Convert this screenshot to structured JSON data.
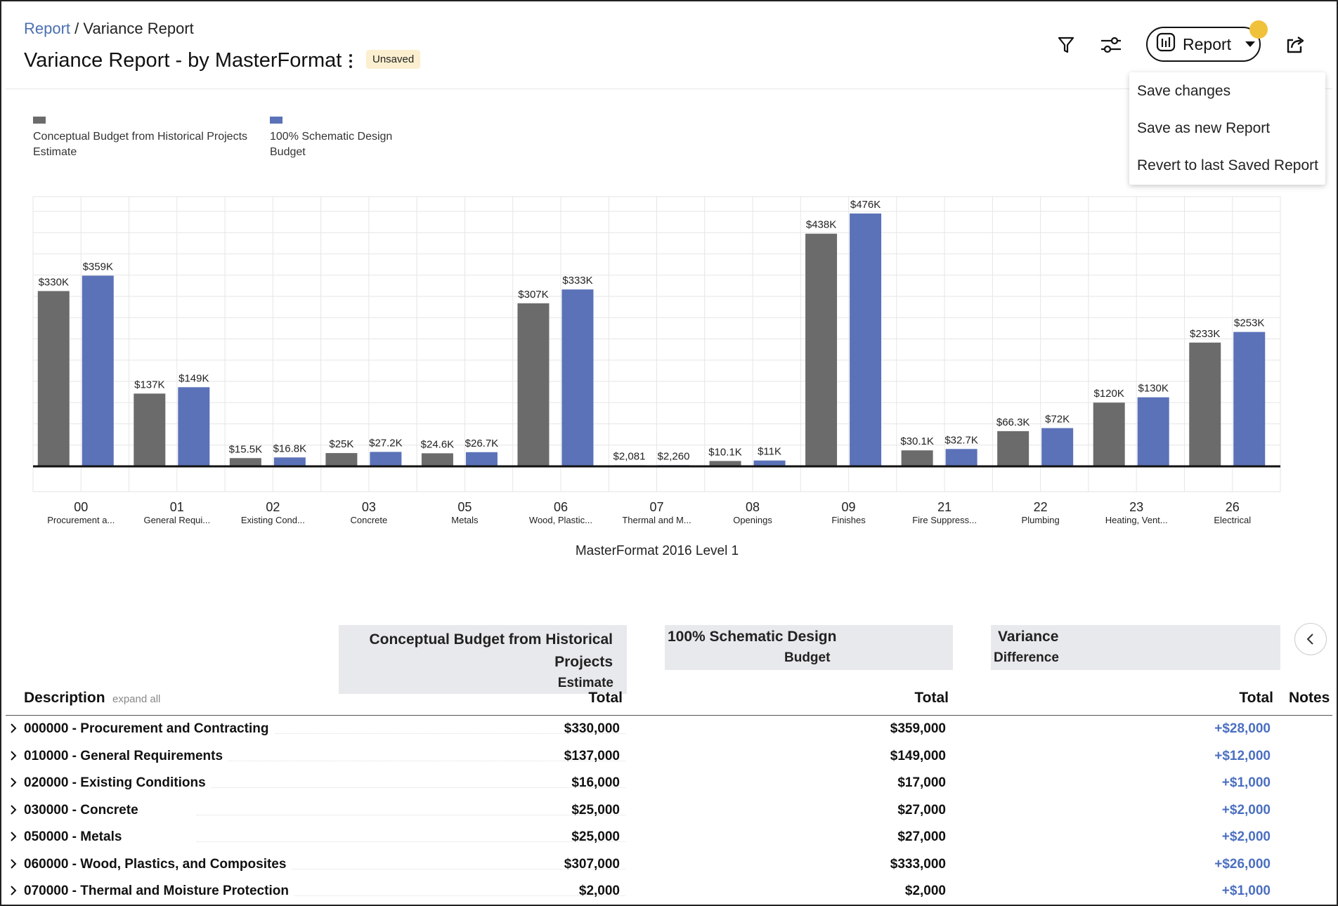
{
  "breadcrumb": {
    "link": "Report",
    "separator": "/",
    "current": "Variance Report"
  },
  "page_title": "Variance Report - by MasterFormat",
  "status_badge": "Unsaved",
  "toolbar": {
    "report_label": "Report"
  },
  "report_menu": {
    "items": [
      "Save changes",
      "Save as new Report",
      "Revert to last Saved Report"
    ]
  },
  "legend": [
    {
      "line1": "Conceptual Budget from Historical Projects",
      "line2": "Estimate",
      "color": "#6b6b6b"
    },
    {
      "line1": "100% Schematic Design",
      "line2": "Budget",
      "color": "#5b72b8"
    }
  ],
  "chart_data": {
    "type": "bar",
    "xlabel": "MasterFormat 2016 Level 1",
    "ylabel": "",
    "ylim": [
      0,
      500000
    ],
    "grid": true,
    "legend_placement": "top-left",
    "categories": [
      "00",
      "01",
      "02",
      "03",
      "05",
      "06",
      "07",
      "08",
      "09",
      "21",
      "22",
      "23",
      "26"
    ],
    "category_names": [
      "Procurement a...",
      "General Requi...",
      "Existing Cond...",
      "Concrete",
      "Metals",
      "Wood, Plastic...",
      "Thermal and M...",
      "Openings",
      "Finishes",
      "Fire Suppress...",
      "Plumbing",
      "Heating, Vent...",
      "Electrical"
    ],
    "series": [
      {
        "name": "Conceptual Budget from Historical Projects Estimate",
        "color": "#6b6b6b",
        "values": [
          330000,
          137000,
          15500,
          25000,
          24600,
          307000,
          2081,
          10100,
          438000,
          30100,
          66300,
          120000,
          233000
        ],
        "labels": [
          "$330K",
          "$137K",
          "$15.5K",
          "$25K",
          "$24.6K",
          "$307K",
          "$2,081",
          "$10.1K",
          "$438K",
          "$30.1K",
          "$66.3K",
          "$120K",
          "$233K"
        ]
      },
      {
        "name": "100% Schematic Design Budget",
        "color": "#5b72b8",
        "values": [
          359000,
          149000,
          16800,
          27200,
          26700,
          333000,
          2260,
          11000,
          476000,
          32700,
          72000,
          130000,
          253000
        ],
        "labels": [
          "$359K",
          "$149K",
          "$16.8K",
          "$27.2K",
          "$26.7K",
          "$333K",
          "$2,260",
          "$11K",
          "$476K",
          "$32.7K",
          "$72K",
          "$130K",
          "$253K"
        ]
      }
    ]
  },
  "table": {
    "group_headers": {
      "estimate": {
        "line1": "Conceptual Budget from Historical",
        "line2": "Projects",
        "line3": "Estimate"
      },
      "budget": {
        "line1": "100% Schematic Design",
        "line2": "Budget"
      },
      "variance": {
        "line1": "Variance",
        "line2": "Difference"
      }
    },
    "columns": {
      "description": "Description",
      "expand_all": "expand all",
      "total1": "Total",
      "total2": "Total",
      "total3": "Total",
      "notes": "Notes"
    },
    "rows": [
      {
        "description": "000000 - Procurement and Contracting",
        "estimate": "$330,000",
        "budget": "$359,000",
        "variance": "+$28,000"
      },
      {
        "description": "010000 - General Requirements",
        "estimate": "$137,000",
        "budget": "$149,000",
        "variance": "+$12,000"
      },
      {
        "description": "020000 - Existing Conditions",
        "estimate": "$16,000",
        "budget": "$17,000",
        "variance": "+$1,000"
      },
      {
        "description": "030000 - Concrete",
        "estimate": "$25,000",
        "budget": "$27,000",
        "variance": "+$2,000"
      },
      {
        "description": "050000 - Metals",
        "estimate": "$25,000",
        "budget": "$27,000",
        "variance": "+$2,000"
      },
      {
        "description": "060000 - Wood, Plastics, and Composites",
        "estimate": "$307,000",
        "budget": "$333,000",
        "variance": "+$26,000"
      },
      {
        "description": "070000 - Thermal and Moisture Protection",
        "estimate": "$2,000",
        "budget": "$2,000",
        "variance": "+$1,000"
      }
    ]
  }
}
